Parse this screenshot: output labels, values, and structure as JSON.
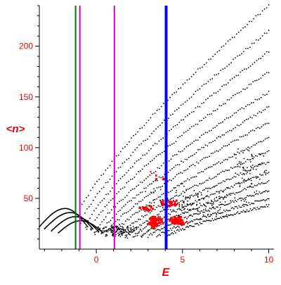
{
  "chart_data": {
    "type": "scatter",
    "title": "",
    "xlabel": "E",
    "ylabel": "<n>",
    "xlim": [
      -3.3,
      10.3
    ],
    "ylim": [
      0,
      240
    ],
    "x_ticks": [
      {
        "value": 0,
        "label": "0"
      },
      {
        "value": 5,
        "label": "5"
      },
      {
        "value": 10,
        "label": "10"
      }
    ],
    "y_ticks": [
      {
        "value": 50,
        "label": "50"
      },
      {
        "value": 100,
        "label": "100"
      },
      {
        "value": 150,
        "label": "150"
      },
      {
        "value": 200,
        "label": "200"
      }
    ],
    "grid": false,
    "label_color": "#e8000b",
    "axis_color": "#000000",
    "vertical_lines": [
      {
        "x": -1.2,
        "color": "#007a00",
        "width": 2
      },
      {
        "x": -0.95,
        "color": "#d400d4",
        "width": 2
      },
      {
        "x": 1.05,
        "color": "#d400d4",
        "width": 2
      },
      {
        "x": 4.05,
        "color": "#0000ff",
        "width": 4
      }
    ],
    "series": [
      {
        "kind": "band",
        "color": "#000000",
        "comment_none": "",
        "bands": [
          {
            "x0": -1.2,
            "y0": 28,
            "x1": 10.0,
            "y1": 240
          },
          {
            "x0": -0.9,
            "y0": 25,
            "x1": 10.0,
            "y1": 215
          },
          {
            "x0": -0.6,
            "y0": 22,
            "x1": 10.0,
            "y1": 195
          },
          {
            "x0": -0.3,
            "y0": 20,
            "x1": 10.0,
            "y1": 175
          },
          {
            "x0": 0.0,
            "y0": 18,
            "x1": 10.0,
            "y1": 155
          },
          {
            "x0": 0.3,
            "y0": 16,
            "x1": 10.0,
            "y1": 140
          },
          {
            "x0": 0.6,
            "y0": 15,
            "x1": 10.0,
            "y1": 125
          },
          {
            "x0": 1.0,
            "y0": 14,
            "x1": 10.0,
            "y1": 110
          },
          {
            "x0": 1.4,
            "y0": 13,
            "x1": 10.0,
            "y1": 97
          },
          {
            "x0": 1.8,
            "y0": 12,
            "x1": 10.0,
            "y1": 86
          },
          {
            "x0": 2.2,
            "y0": 12,
            "x1": 10.0,
            "y1": 76
          },
          {
            "x0": 2.6,
            "y0": 12,
            "x1": 10.0,
            "y1": 67
          },
          {
            "x0": 3.0,
            "y0": 12,
            "x1": 10.0,
            "y1": 58
          },
          {
            "x0": 3.5,
            "y0": 12,
            "x1": 10.0,
            "y1": 50
          },
          {
            "x0": 4.0,
            "y0": 12,
            "x1": 10.0,
            "y1": 43
          }
        ]
      },
      {
        "kind": "arc",
        "color": "#000000",
        "arcs": [
          {
            "x_start": -3.3,
            "x_peak": -1.8,
            "x_end": -0.5,
            "y_start": 22,
            "y_peak": 40,
            "y_end": 22
          },
          {
            "x_start": -3.0,
            "x_peak": -1.5,
            "x_end": -0.2,
            "y_start": 20,
            "y_peak": 36,
            "y_end": 20
          },
          {
            "x_start": -2.6,
            "x_peak": -1.2,
            "x_end": 0.1,
            "y_start": 18,
            "y_peak": 32,
            "y_end": 18
          },
          {
            "x_start": -2.2,
            "x_peak": -0.9,
            "x_end": 0.4,
            "y_start": 16,
            "y_peak": 28,
            "y_end": 16
          }
        ]
      },
      {
        "kind": "cluster",
        "color": "#000000",
        "clusters": [
          {
            "x_center": 1.2,
            "y_center": 18,
            "x_spread": 2.2,
            "y_spread": 8,
            "count": 160
          },
          {
            "x_center": 5.5,
            "y_center": 45,
            "x_spread": 4.5,
            "y_spread": 25,
            "count": 140
          },
          {
            "x_center": 8.8,
            "y_center": 80,
            "x_spread": 1.5,
            "y_spread": 30,
            "count": 60
          }
        ]
      },
      {
        "kind": "highlight",
        "color": "#ff0000",
        "clusters": [
          {
            "x_center": 3.4,
            "y_center": 27,
            "x_spread": 0.6,
            "y_spread": 8,
            "count": 70
          },
          {
            "x_center": 4.7,
            "y_center": 28,
            "x_spread": 0.7,
            "y_spread": 6,
            "count": 60
          },
          {
            "x_center": 4.2,
            "y_center": 45,
            "x_spread": 0.9,
            "y_spread": 6,
            "count": 25
          },
          {
            "x_center": 3.0,
            "y_center": 40,
            "x_spread": 0.7,
            "y_spread": 5,
            "count": 14
          },
          {
            "x_center": 3.6,
            "y_center": 70,
            "x_spread": 1.0,
            "y_spread": 15,
            "count": 6
          }
        ]
      }
    ]
  }
}
